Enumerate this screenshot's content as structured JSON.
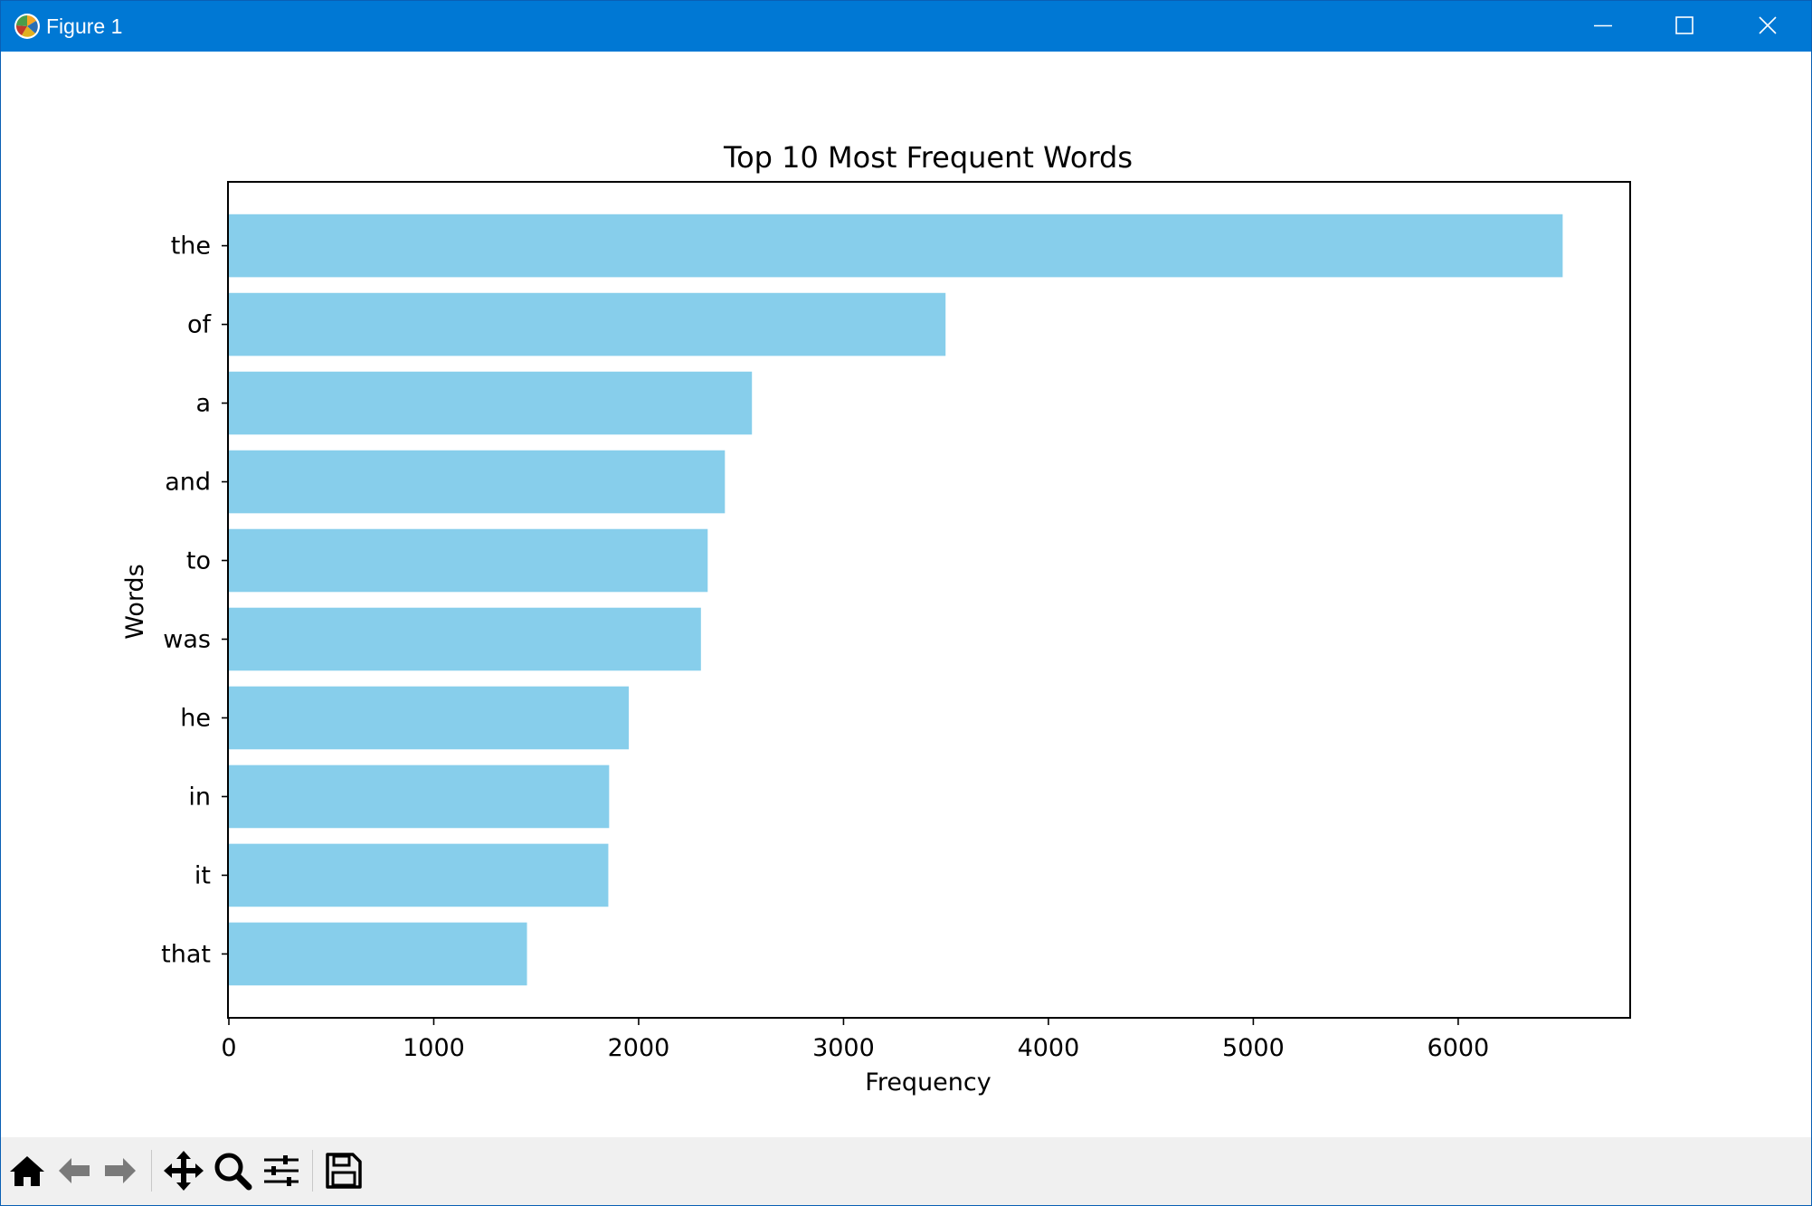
{
  "window": {
    "title": "Figure 1"
  },
  "toolbar": {
    "tools": [
      "home-icon",
      "back-arrow-icon",
      "forward-arrow-icon",
      "pan-icon",
      "zoom-icon",
      "configure-subplots-icon",
      "save-icon"
    ]
  },
  "colors": {
    "bar": "#87ceeb",
    "titlebar": "#0078d4",
    "axes": "#000000"
  },
  "chart_data": {
    "type": "bar",
    "orientation": "horizontal",
    "title": "Top 10 Most Frequent Words",
    "xlabel": "Frequency",
    "ylabel": "Words",
    "categories": [
      "the",
      "of",
      "a",
      "and",
      "to",
      "was",
      "he",
      "in",
      "it",
      "that"
    ],
    "values": [
      6510,
      3498,
      2553,
      2421,
      2337,
      2304,
      1952,
      1856,
      1852,
      1455
    ],
    "xlim": [
      0,
      6835
    ],
    "xticks": [
      0,
      1000,
      2000,
      3000,
      4000,
      5000,
      6000
    ],
    "grid": false
  }
}
